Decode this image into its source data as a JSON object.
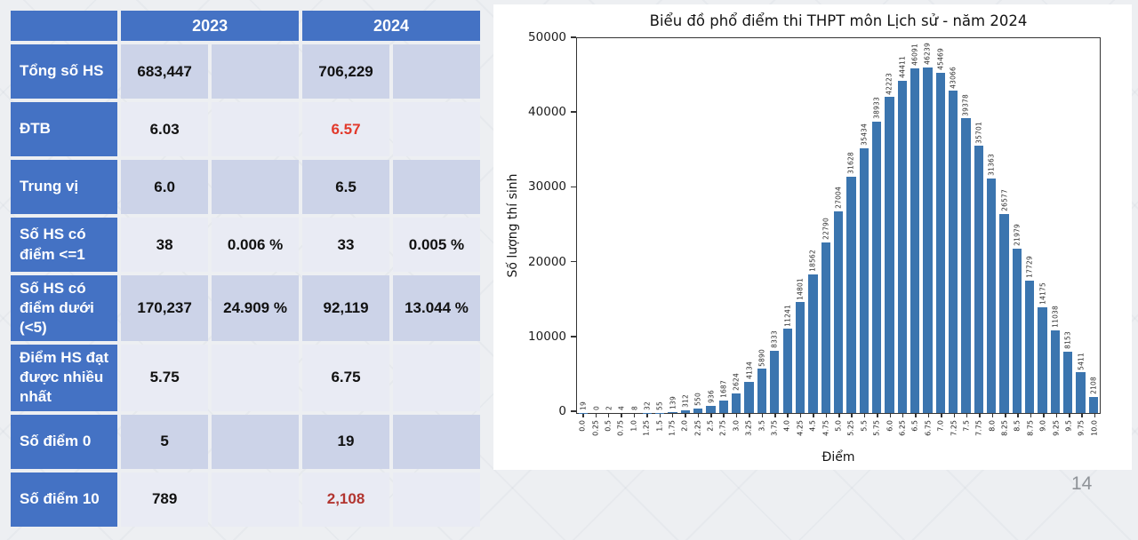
{
  "colors": {
    "table_header_blue": "#4472c4",
    "row_band_dark": "#ccd3e8",
    "row_band_light": "#e9ebf4",
    "bar_blue": "#3b75af",
    "red_bright": "#e2392b",
    "red_dark": "#b23530",
    "page_number_gray": "#8f9398"
  },
  "table": {
    "header": [
      "2023",
      "2024"
    ],
    "rows": [
      {
        "label": "Tổng số HS",
        "cells": [
          {
            "text": "683,447"
          },
          {
            "text": ""
          },
          {
            "text": "706,229"
          },
          {
            "text": ""
          }
        ]
      },
      {
        "label": "ĐTB",
        "cells": [
          {
            "text": "6.03"
          },
          {
            "text": ""
          },
          {
            "text": "6.57",
            "color": "#e2392b"
          },
          {
            "text": ""
          }
        ]
      },
      {
        "label": "Trung vị",
        "cells": [
          {
            "text": "6.0"
          },
          {
            "text": ""
          },
          {
            "text": "6.5"
          },
          {
            "text": ""
          }
        ]
      },
      {
        "label": "Số HS có điểm <=1",
        "cells": [
          {
            "text": "38"
          },
          {
            "text": "0.006 %"
          },
          {
            "text": "33"
          },
          {
            "text": "0.005 %"
          }
        ]
      },
      {
        "label": "Số HS có điểm dưới (<5)",
        "cells": [
          {
            "text": "170,237"
          },
          {
            "text": "24.909 %"
          },
          {
            "text": "92,119"
          },
          {
            "text": "13.044 %"
          }
        ]
      },
      {
        "label": "Điểm HS đạt được nhiều nhất",
        "cells": [
          {
            "text": "5.75"
          },
          {
            "text": ""
          },
          {
            "text": "6.75"
          },
          {
            "text": ""
          }
        ]
      },
      {
        "label": "Số điểm 0",
        "cells": [
          {
            "text": "5"
          },
          {
            "text": ""
          },
          {
            "text": "19"
          },
          {
            "text": ""
          }
        ]
      },
      {
        "label": "Số điểm 10",
        "cells": [
          {
            "text": "789"
          },
          {
            "text": ""
          },
          {
            "text": "2,108",
            "color": "#b23530"
          },
          {
            "text": ""
          }
        ]
      }
    ]
  },
  "chart_data": {
    "type": "bar",
    "title": "Biểu đồ phổ điểm thi THPT môn Lịch sử - năm 2024",
    "xlabel": "Điểm",
    "ylabel": "Số lượng thí sinh",
    "ylim": [
      0,
      50000
    ],
    "yticks": [
      0,
      10000,
      20000,
      30000,
      40000,
      50000
    ],
    "grid": false,
    "legend": "none",
    "bar_labels": true,
    "bar_color": "#3b75af",
    "categories": [
      "0.0",
      "0.25",
      "0.5",
      "0.75",
      "1.0",
      "1.25",
      "1.5",
      "1.75",
      "2.0",
      "2.25",
      "2.5",
      "2.75",
      "3.0",
      "3.25",
      "3.5",
      "3.75",
      "4.0",
      "4.25",
      "4.5",
      "4.75",
      "5.0",
      "5.25",
      "5.5",
      "5.75",
      "6.0",
      "6.25",
      "6.5",
      "6.75",
      "7.0",
      "7.25",
      "7.5",
      "7.75",
      "8.0",
      "8.25",
      "8.5",
      "8.75",
      "9.0",
      "9.25",
      "9.5",
      "9.75",
      "10.0"
    ],
    "values": [
      19,
      0,
      2,
      4,
      8,
      32,
      55,
      139,
      312,
      550,
      936,
      1687,
      2624,
      4134,
      5890,
      8333,
      11241,
      14801,
      18562,
      22790,
      27004,
      31628,
      35434,
      38933,
      42223,
      44411,
      46091,
      46239,
      45469,
      43066,
      39378,
      35701,
      31363,
      26577,
      21979,
      17729,
      14175,
      11038,
      8153,
      5411,
      2108
    ]
  },
  "page": {
    "number": "14"
  }
}
